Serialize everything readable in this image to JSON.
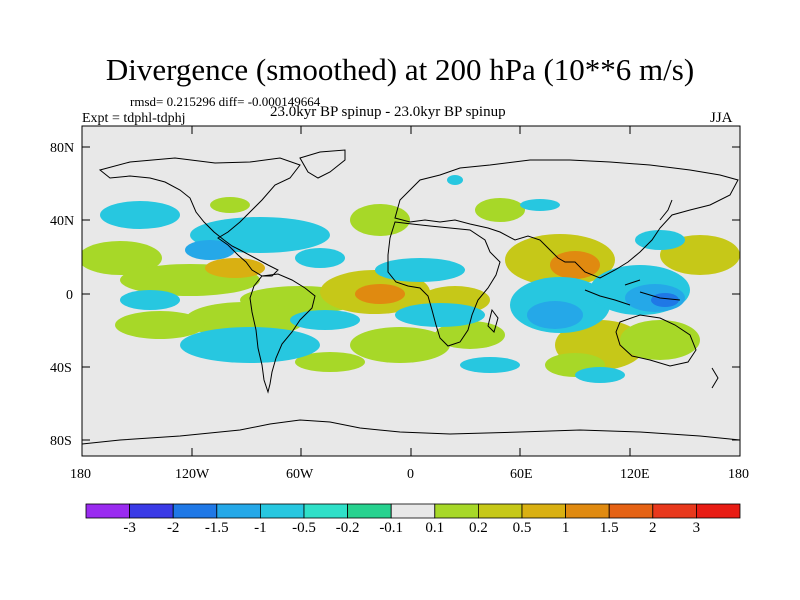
{
  "header": {
    "title": "Divergence (smoothed) at 200 hPa (10**6 m/s)",
    "stats": "rmsd= 0.215296 diff= -0.000149664",
    "experiment": "Expt = tdphl-tdphj",
    "runs": "23.0kyr BP spinup - 23.0kyr BP spinup",
    "season": "JJA"
  },
  "axes": {
    "lat_ticks": [
      "80N",
      "40N",
      "0",
      "40S",
      "80S"
    ],
    "lon_ticks": [
      "180",
      "120W",
      "60W",
      "0",
      "60E",
      "120E",
      "180"
    ]
  },
  "colorbar": {
    "labels": [
      "-3",
      "-2",
      "-1.5",
      "-1",
      "-0.5",
      "-0.2",
      "-0.1",
      "0.1",
      "0.2",
      "0.5",
      "1",
      "1.5",
      "2",
      "3"
    ],
    "colors": [
      "#9a2bf0",
      "#3a3ae6",
      "#1f78e6",
      "#25a8e8",
      "#27c7e0",
      "#2fe0c8",
      "#27d28f",
      "#e8e8e8",
      "#a7d828",
      "#c6c818",
      "#d9b012",
      "#e08a10",
      "#e56214",
      "#e8381c",
      "#e81c14"
    ]
  },
  "map_colors": {
    "background": "#e8e8e8",
    "neg_light": "#27c7e0",
    "neg_mid": "#25a8e8",
    "neg_strong": "#1f78e6",
    "pos_light": "#a7d828",
    "pos_mid": "#c6c818",
    "pos_strong": "#d9b012",
    "pos_peak": "#e08a10"
  }
}
